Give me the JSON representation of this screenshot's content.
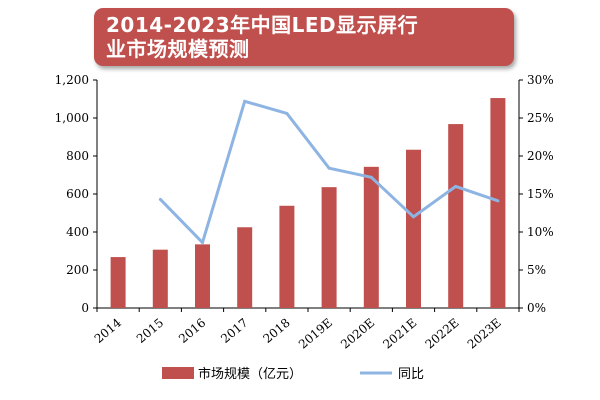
{
  "chart_data": {
    "type": "bar",
    "title_lines": [
      "2014-2023年中国LED显示屏行",
      "业市场规模预测"
    ],
    "categories": [
      "2014",
      "2015",
      "2016",
      "2017",
      "2018",
      "2019E",
      "2020E",
      "2021E",
      "2022E",
      "2023E"
    ],
    "series": [
      {
        "name": "市场规模（亿元）",
        "type": "bar",
        "axis": "left",
        "color": "#c0504d",
        "values": [
          268,
          307,
          335,
          425,
          538,
          636,
          743,
          833,
          968,
          1105
        ]
      },
      {
        "name": "同比",
        "type": "line",
        "axis": "right",
        "color": "#8eb4e3",
        "values": [
          null,
          14.3,
          8.6,
          27.2,
          25.6,
          18.4,
          17.2,
          12.0,
          16.0,
          14.1
        ]
      }
    ],
    "yleft": {
      "min": 0,
      "max": 1200,
      "step": 200,
      "ticks": [
        "0",
        "200",
        "400",
        "600",
        "800",
        "1,000",
        "1,200"
      ]
    },
    "yright": {
      "min": 0,
      "max": 30,
      "step": 5,
      "ticks": [
        "0%",
        "5%",
        "10%",
        "15%",
        "20%",
        "25%",
        "30%"
      ]
    },
    "grid": false,
    "legend_position": "bottom"
  }
}
